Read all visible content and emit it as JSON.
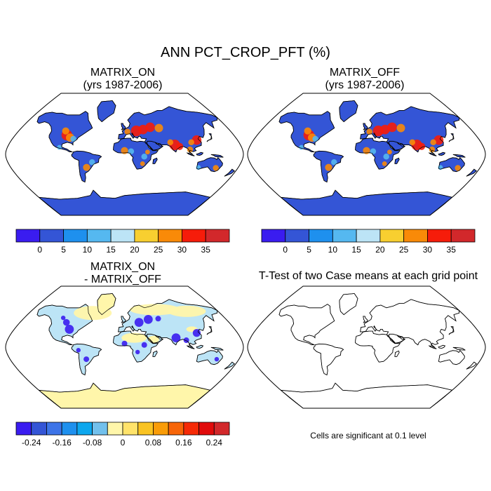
{
  "title": "ANN PCT_CROP_PFT (%)",
  "panels": [
    {
      "id": "p1",
      "line1": "MATRIX_ON",
      "line2": "(yrs 1987-2006)"
    },
    {
      "id": "p2",
      "line1": "MATRIX_OFF",
      "line2": "(yrs 1987-2006)"
    },
    {
      "id": "p3",
      "line1": "MATRIX_ON",
      "line2": "- MATRIX_OFF"
    },
    {
      "id": "p4",
      "line1": "T-Test of two Case means at each grid point",
      "line2": ""
    }
  ],
  "colorbars": {
    "abs": {
      "colors": [
        "#3a1cf0",
        "#3455d6",
        "#1e90ee",
        "#55b8f0",
        "#bce4f6",
        "#f8cf30",
        "#f98a08",
        "#f61c0a",
        "#d2282b"
      ],
      "labels": [
        "0",
        "5",
        "10",
        "15",
        "20",
        "25",
        "30",
        "35"
      ]
    },
    "diff": {
      "colors": [
        "#3a1cf0",
        "#3455d6",
        "#3d74e8",
        "#1e90ee",
        "#0da7ee",
        "#72c0ec",
        "#fff6aa",
        "#ffe36a",
        "#f9c322",
        "#f99c08",
        "#f76508",
        "#f62a06",
        "#e10b0b",
        "#d2282b"
      ],
      "labels": [
        "-0.24",
        "-0.16",
        "-0.08",
        "0",
        "0.08",
        "0.16",
        "0.24"
      ]
    }
  },
  "significance_note": "Cells are significant at 0.1 level",
  "map_colors": {
    "ocean": "#ffffff",
    "land_low": "#3455d6",
    "crop_high": "#f61c0a",
    "crop_mid": "#f98a08",
    "crop_light": "#55b8f0",
    "diff_ice": "#fff6aa",
    "diff_land": "#bce4f6",
    "diff_neg": "#3a1cf0",
    "coast": "#000000"
  }
}
